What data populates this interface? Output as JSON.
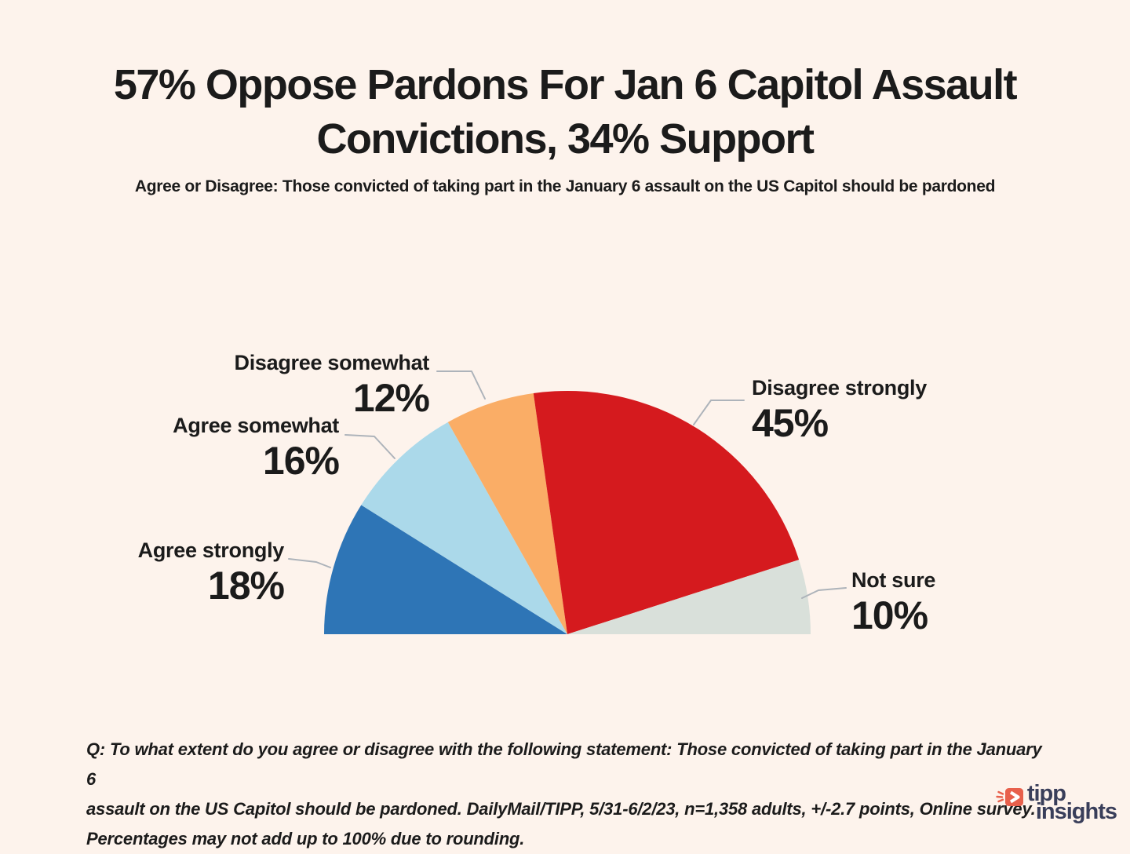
{
  "page": {
    "background_color": "#FDF3EC",
    "text_color": "#1B1B1B",
    "leader_line_color": "#ADB3BA"
  },
  "chart_data": {
    "type": "pie",
    "variant": "semicircle",
    "title": "57% Oppose Pardons For Jan 6 Capitol Assault Convictions, 34% Support",
    "title_line1": "57% Oppose Pardons For Jan 6 Capitol Assault",
    "title_line2": "Convictions, 34% Support",
    "subtitle": "Agree or Disagree: Those convicted of taking part in the January 6 assault on the US Capitol should be pardoned",
    "unit": "percent",
    "legend_position": "callouts",
    "categories": [
      "Agree strongly",
      "Agree somewhat",
      "Disagree somewhat",
      "Disagree strongly",
      "Not sure"
    ],
    "values": [
      18,
      16,
      12,
      45,
      10
    ],
    "colors": [
      "#2E75B6",
      "#ABD9EA",
      "#FAAD66",
      "#D51A1E",
      "#D9E0DA"
    ],
    "slices": [
      {
        "label": "Agree strongly",
        "value": 18,
        "pct_label": "18%",
        "color": "#2E75B6"
      },
      {
        "label": "Agree somewhat",
        "value": 16,
        "pct_label": "16%",
        "color": "#ABD9EA"
      },
      {
        "label": "Disagree somewhat",
        "value": 12,
        "pct_label": "12%",
        "color": "#FAAD66"
      },
      {
        "label": "Disagree strongly",
        "value": 45,
        "pct_label": "45%",
        "color": "#D51A1E"
      },
      {
        "label": "Not sure",
        "value": 10,
        "pct_label": "10%",
        "color": "#D9E0DA"
      }
    ]
  },
  "footer": {
    "note": "Q: To what extent do you agree or disagree with the following statement: Those convicted of taking part in the January 6 assault on the US Capitol should be pardoned. DailyMail/TIPP, 5/31-6/2/23, n=1,358 adults, +/-2.7 points, Online survey. Percentages may not add up to 100% due to rounding.",
    "lines": [
      "Q: To what extent do you agree or disagree with the following statement: Those convicted of taking part in the January 6",
      "assault on the US Capitol should be pardoned. DailyMail/TIPP, 5/31-6/2/23, n=1,358 adults, +/-2.7 points, Online survey.",
      "Percentages may not add up to 100% due to rounding."
    ]
  },
  "logo": {
    "word1": "tipp",
    "word2": "insights",
    "accent_color": "#E8604C",
    "text_color": "#393E5A"
  }
}
